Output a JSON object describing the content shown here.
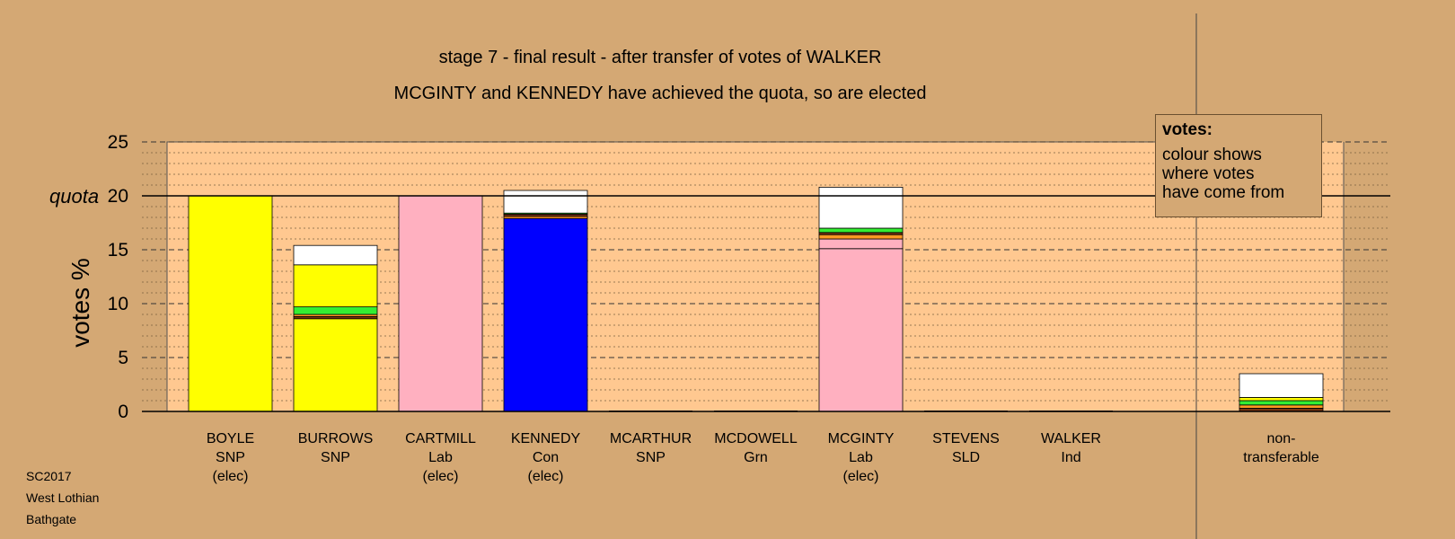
{
  "title": "stage 7 - final result - after transfer of votes of WALKER",
  "subtitle": "MCGINTY and KENNEDY have achieved the quota, so are elected",
  "legend": {
    "title": "votes:",
    "lines": [
      "colour shows",
      "where votes",
      "have come from"
    ]
  },
  "footer": [
    "SC2017",
    "West Lothian",
    "Bathgate"
  ],
  "colors": {
    "SNP": "#ffff00",
    "Lab": "#ffb0c0",
    "Con": "#0000ff",
    "Grn": "#33ee33",
    "SLD": "#ff9922",
    "Ind": "#773311",
    "transfer_other": "#ffffff",
    "background": "#d4a874",
    "plot_area": "#ffc890"
  },
  "chart_data": {
    "type": "bar",
    "stacked": true,
    "ylabel": "votes %",
    "ylim": [
      0,
      25
    ],
    "yticks": [
      0,
      5,
      10,
      15,
      20,
      25
    ],
    "quota": 20,
    "quota_label": "quota",
    "grid": true,
    "candidates": [
      {
        "name": "BOYLE",
        "party": "SNP",
        "status": "(elec)",
        "segments": [
          {
            "from": "SNP",
            "value": 20.0
          }
        ]
      },
      {
        "name": "BURROWS",
        "party": "SNP",
        "status": "",
        "segments": [
          {
            "from": "SNP",
            "value": 8.6
          },
          {
            "from": "Ind",
            "value": 0.2
          },
          {
            "from": "SLD",
            "value": 0.2
          },
          {
            "from": "Grn",
            "value": 0.7
          },
          {
            "from": "SNP",
            "value": 3.9
          },
          {
            "from": "transfer_other",
            "value": 1.8
          }
        ]
      },
      {
        "name": "CARTMILL",
        "party": "Lab",
        "status": "(elec)",
        "segments": [
          {
            "from": "Lab",
            "value": 20.0
          }
        ]
      },
      {
        "name": "KENNEDY",
        "party": "Con",
        "status": "(elec)",
        "segments": [
          {
            "from": "Con",
            "value": 17.9
          },
          {
            "from": "SLD",
            "value": 0.2
          },
          {
            "from": "Ind",
            "value": 0.2
          },
          {
            "from": "Grn",
            "value": 0.1
          },
          {
            "from": "transfer_other",
            "value": 2.1
          }
        ]
      },
      {
        "name": "MCARTHUR",
        "party": "SNP",
        "status": "",
        "segments": []
      },
      {
        "name": "MCDOWELL",
        "party": "Grn",
        "status": "",
        "segments": []
      },
      {
        "name": "MCGINTY",
        "party": "Lab",
        "status": "(elec)",
        "segments": [
          {
            "from": "Lab",
            "value": 15.1
          },
          {
            "from": "Lab",
            "value": 0.9
          },
          {
            "from": "SLD",
            "value": 0.4
          },
          {
            "from": "Ind",
            "value": 0.2
          },
          {
            "from": "Grn",
            "value": 0.4
          },
          {
            "from": "transfer_other",
            "value": 3.8
          }
        ]
      },
      {
        "name": "STEVENS",
        "party": "SLD",
        "status": "",
        "segments": []
      },
      {
        "name": "WALKER",
        "party": "Ind",
        "status": "",
        "segments": []
      }
    ],
    "nontransferable": {
      "label_lines": [
        "non-",
        "transferable"
      ],
      "segments": [
        {
          "from": "Ind",
          "value": 0.3
        },
        {
          "from": "SLD",
          "value": 0.3
        },
        {
          "from": "Grn",
          "value": 0.4
        },
        {
          "from": "SNP",
          "value": 0.3
        },
        {
          "from": "transfer_other",
          "value": 2.2
        }
      ]
    }
  }
}
